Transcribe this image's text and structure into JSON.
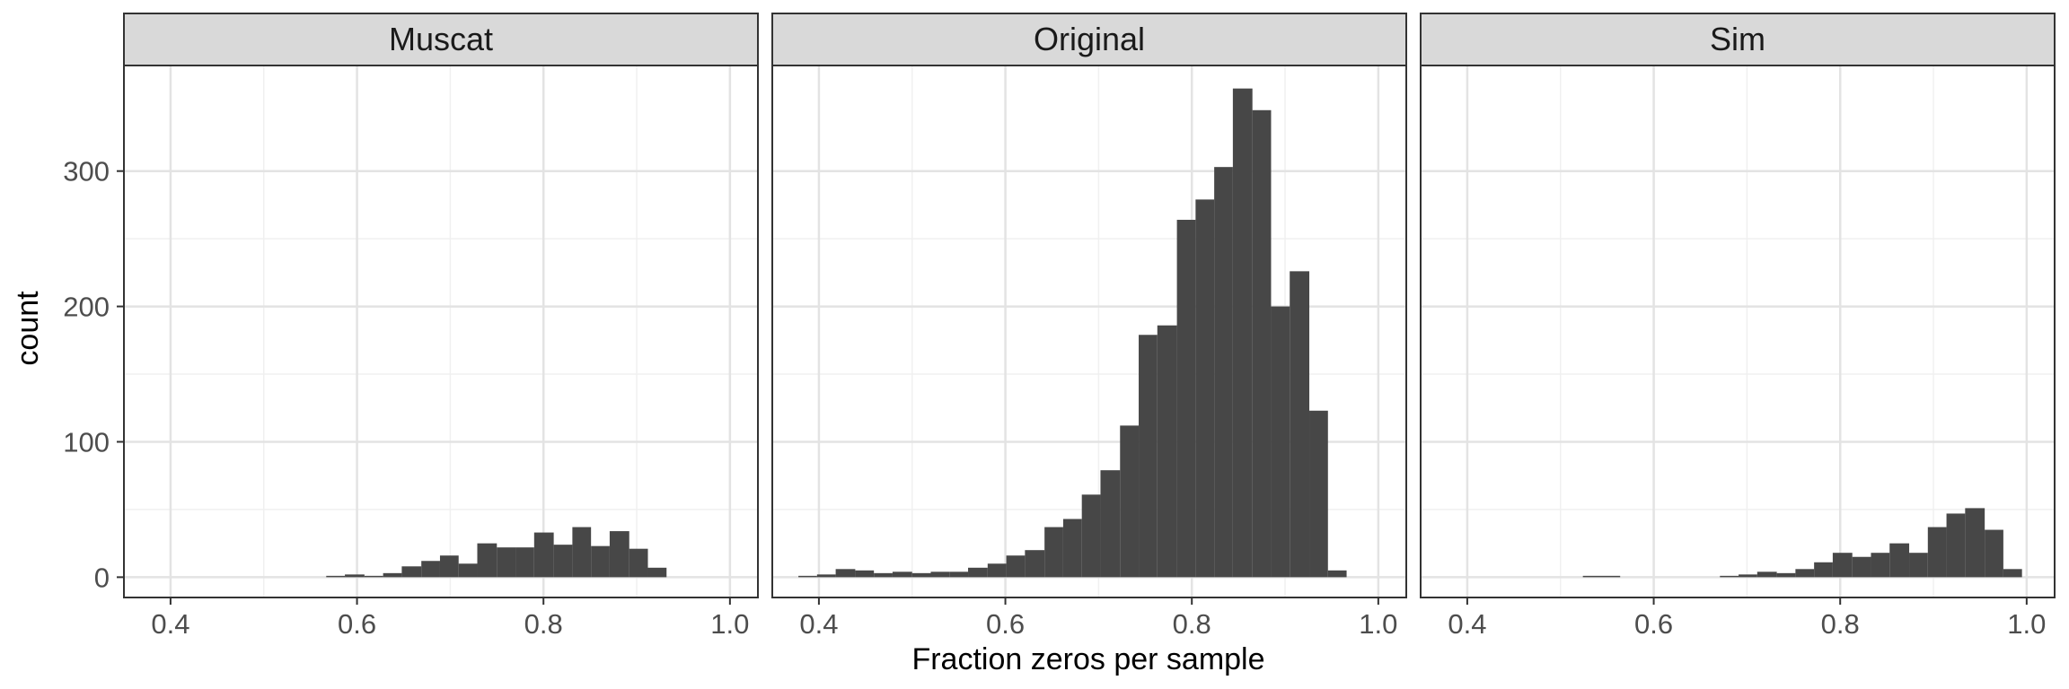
{
  "chart_data": {
    "type": "bar",
    "xlabel": "Fraction zeros per sample",
    "ylabel": "count",
    "xlim": [
      0.35,
      1.03
    ],
    "ylim": [
      -15,
      378
    ],
    "x_ticks": [
      0.4,
      0.6,
      0.8,
      1.0
    ],
    "x_tick_labels": [
      "0.4",
      "0.6",
      "0.8",
      "1.0"
    ],
    "y_ticks": [
      0,
      100,
      200,
      300
    ],
    "y_tick_labels": [
      "0",
      "100",
      "200",
      "300"
    ],
    "grid": true,
    "bar_color": "#474747",
    "panels": [
      {
        "name": "Muscat",
        "bins": [
          {
            "x0": 0.567,
            "x1": 0.587,
            "count": 1
          },
          {
            "x0": 0.587,
            "x1": 0.608,
            "count": 2
          },
          {
            "x0": 0.608,
            "x1": 0.628,
            "count": 1
          },
          {
            "x0": 0.628,
            "x1": 0.648,
            "count": 3
          },
          {
            "x0": 0.648,
            "x1": 0.669,
            "count": 8
          },
          {
            "x0": 0.669,
            "x1": 0.689,
            "count": 12
          },
          {
            "x0": 0.689,
            "x1": 0.709,
            "count": 16
          },
          {
            "x0": 0.709,
            "x1": 0.729,
            "count": 10
          },
          {
            "x0": 0.729,
            "x1": 0.75,
            "count": 25
          },
          {
            "x0": 0.75,
            "x1": 0.77,
            "count": 22
          },
          {
            "x0": 0.77,
            "x1": 0.79,
            "count": 22
          },
          {
            "x0": 0.79,
            "x1": 0.811,
            "count": 33
          },
          {
            "x0": 0.811,
            "x1": 0.831,
            "count": 24
          },
          {
            "x0": 0.831,
            "x1": 0.851,
            "count": 37
          },
          {
            "x0": 0.851,
            "x1": 0.871,
            "count": 23
          },
          {
            "x0": 0.871,
            "x1": 0.892,
            "count": 34
          },
          {
            "x0": 0.892,
            "x1": 0.912,
            "count": 21
          },
          {
            "x0": 0.912,
            "x1": 0.932,
            "count": 7
          }
        ]
      },
      {
        "name": "Original",
        "bins": [
          {
            "x0": 0.378,
            "x1": 0.398,
            "count": 1
          },
          {
            "x0": 0.398,
            "x1": 0.418,
            "count": 2
          },
          {
            "x0": 0.418,
            "x1": 0.439,
            "count": 6
          },
          {
            "x0": 0.439,
            "x1": 0.459,
            "count": 5
          },
          {
            "x0": 0.459,
            "x1": 0.479,
            "count": 3
          },
          {
            "x0": 0.479,
            "x1": 0.5,
            "count": 4
          },
          {
            "x0": 0.5,
            "x1": 0.52,
            "count": 3
          },
          {
            "x0": 0.52,
            "x1": 0.54,
            "count": 4
          },
          {
            "x0": 0.54,
            "x1": 0.56,
            "count": 4
          },
          {
            "x0": 0.56,
            "x1": 0.581,
            "count": 7
          },
          {
            "x0": 0.581,
            "x1": 0.601,
            "count": 10
          },
          {
            "x0": 0.601,
            "x1": 0.621,
            "count": 16
          },
          {
            "x0": 0.621,
            "x1": 0.642,
            "count": 20
          },
          {
            "x0": 0.642,
            "x1": 0.662,
            "count": 37
          },
          {
            "x0": 0.662,
            "x1": 0.682,
            "count": 43
          },
          {
            "x0": 0.682,
            "x1": 0.702,
            "count": 61
          },
          {
            "x0": 0.702,
            "x1": 0.723,
            "count": 79
          },
          {
            "x0": 0.723,
            "x1": 0.743,
            "count": 112
          },
          {
            "x0": 0.743,
            "x1": 0.763,
            "count": 179
          },
          {
            "x0": 0.763,
            "x1": 0.784,
            "count": 186
          },
          {
            "x0": 0.784,
            "x1": 0.804,
            "count": 264
          },
          {
            "x0": 0.804,
            "x1": 0.824,
            "count": 279
          },
          {
            "x0": 0.824,
            "x1": 0.844,
            "count": 303
          },
          {
            "x0": 0.844,
            "x1": 0.865,
            "count": 361
          },
          {
            "x0": 0.865,
            "x1": 0.885,
            "count": 345
          },
          {
            "x0": 0.885,
            "x1": 0.905,
            "count": 200
          },
          {
            "x0": 0.905,
            "x1": 0.926,
            "count": 226
          },
          {
            "x0": 0.926,
            "x1": 0.946,
            "count": 123
          },
          {
            "x0": 0.946,
            "x1": 0.966,
            "count": 5
          }
        ]
      },
      {
        "name": "Sim",
        "bins": [
          {
            "x0": 0.524,
            "x1": 0.564,
            "count": 1
          },
          {
            "x0": 0.671,
            "x1": 0.691,
            "count": 1
          },
          {
            "x0": 0.691,
            "x1": 0.711,
            "count": 2
          },
          {
            "x0": 0.711,
            "x1": 0.732,
            "count": 4
          },
          {
            "x0": 0.732,
            "x1": 0.752,
            "count": 3
          },
          {
            "x0": 0.752,
            "x1": 0.772,
            "count": 6
          },
          {
            "x0": 0.772,
            "x1": 0.792,
            "count": 11
          },
          {
            "x0": 0.792,
            "x1": 0.813,
            "count": 18
          },
          {
            "x0": 0.813,
            "x1": 0.833,
            "count": 15
          },
          {
            "x0": 0.833,
            "x1": 0.853,
            "count": 18
          },
          {
            "x0": 0.853,
            "x1": 0.874,
            "count": 25
          },
          {
            "x0": 0.874,
            "x1": 0.894,
            "count": 18
          },
          {
            "x0": 0.894,
            "x1": 0.914,
            "count": 37
          },
          {
            "x0": 0.914,
            "x1": 0.934,
            "count": 47
          },
          {
            "x0": 0.934,
            "x1": 0.955,
            "count": 51
          },
          {
            "x0": 0.955,
            "x1": 0.975,
            "count": 35
          },
          {
            "x0": 0.975,
            "x1": 0.995,
            "count": 6
          }
        ]
      }
    ]
  }
}
